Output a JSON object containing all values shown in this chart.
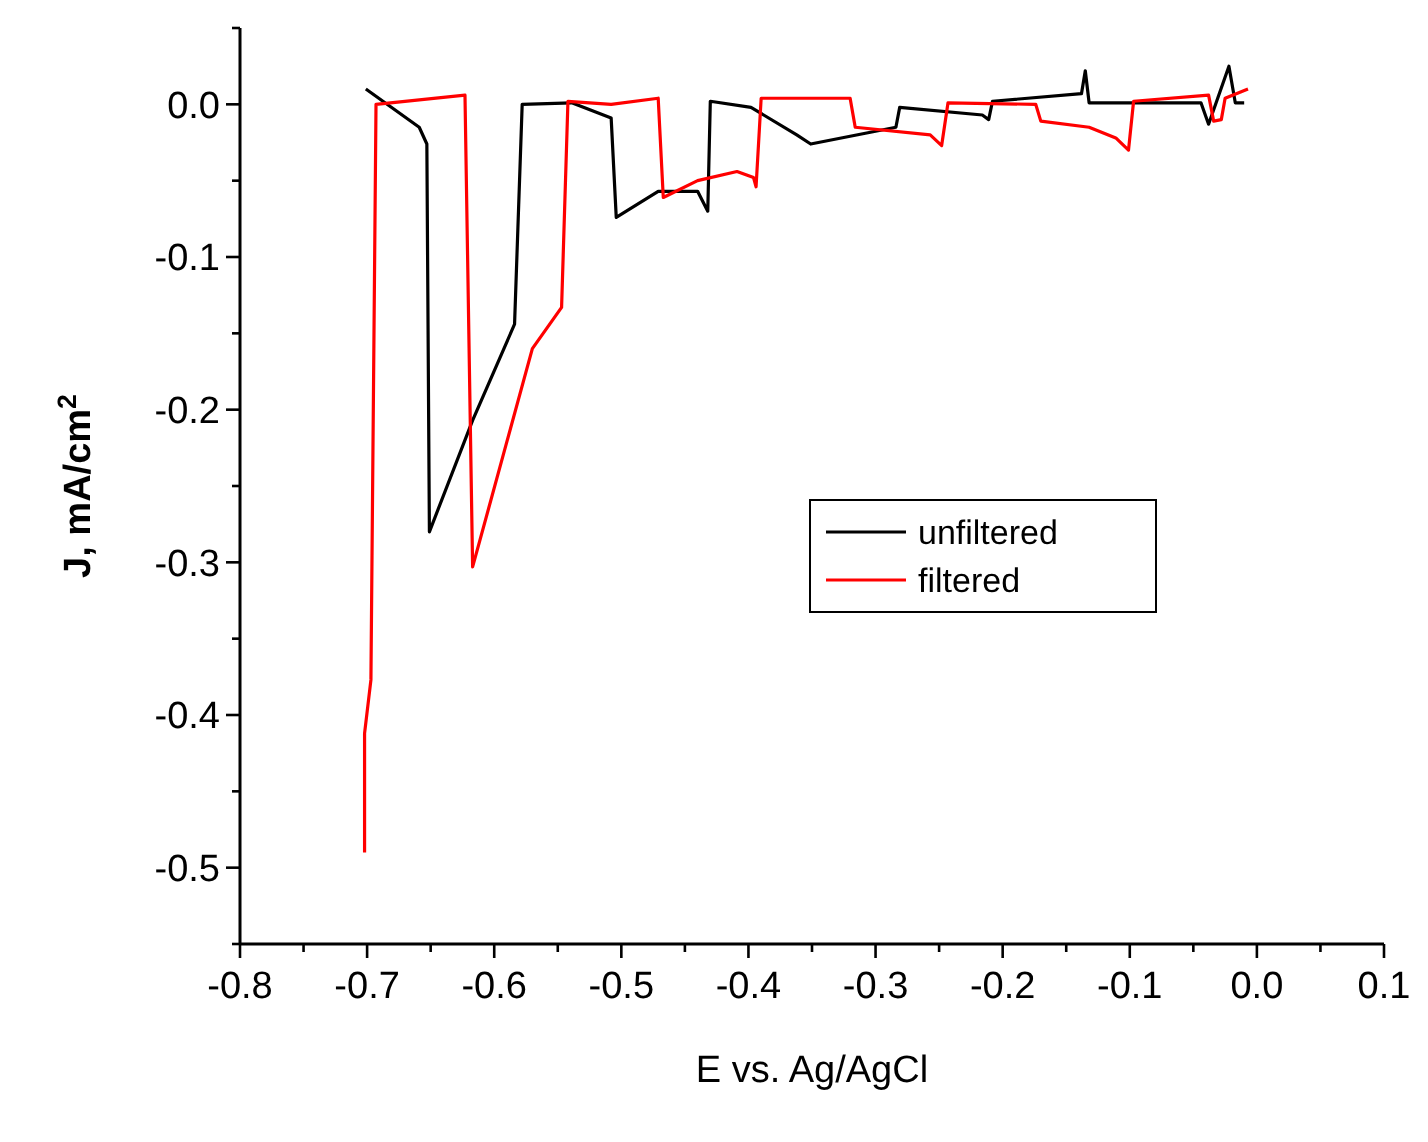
{
  "chart_data": {
    "type": "line",
    "xlabel": "E vs. Ag/AgCl",
    "ylabel": "J, mA/cm$^{2}$",
    "xlim": [
      -0.8,
      0.1
    ],
    "ylim": [
      -0.55,
      0.05
    ],
    "xticks": [
      {
        "value": -0.8,
        "label": "-0.8"
      },
      {
        "value": -0.75,
        "label": null
      },
      {
        "value": -0.7,
        "label": "-0.7"
      },
      {
        "value": -0.65,
        "label": null
      },
      {
        "value": -0.6,
        "label": "-0.6"
      },
      {
        "value": -0.55,
        "label": null
      },
      {
        "value": -0.5,
        "label": "-0.5"
      },
      {
        "value": -0.45,
        "label": null
      },
      {
        "value": -0.4,
        "label": "-0.4"
      },
      {
        "value": -0.35,
        "label": null
      },
      {
        "value": -0.3,
        "label": "-0.3"
      },
      {
        "value": -0.25,
        "label": null
      },
      {
        "value": -0.2,
        "label": "-0.2"
      },
      {
        "value": -0.15,
        "label": null
      },
      {
        "value": -0.1,
        "label": "-0.1"
      },
      {
        "value": -0.05,
        "label": null
      },
      {
        "value": 0,
        "label": "0.0"
      },
      {
        "value": 0.05,
        "label": null
      },
      {
        "value": 0.1,
        "label": "0.1"
      }
    ],
    "yticks": [
      {
        "value": -0.55,
        "label": null
      },
      {
        "value": -0.5,
        "label": "-0.5"
      },
      {
        "value": -0.45,
        "label": null
      },
      {
        "value": -0.4,
        "label": "-0.4"
      },
      {
        "value": -0.35,
        "label": null
      },
      {
        "value": -0.3,
        "label": "-0.3"
      },
      {
        "value": -0.25,
        "label": null
      },
      {
        "value": -0.2,
        "label": "-0.2"
      },
      {
        "value": -0.15,
        "label": null
      },
      {
        "value": -0.1,
        "label": "-0.1"
      },
      {
        "value": -0.05,
        "label": null
      },
      {
        "value": 0,
        "label": "0.0"
      },
      {
        "value": 0.05,
        "label": null
      }
    ],
    "grid": false,
    "legend": "center",
    "line_style": "solid",
    "series": [
      {
        "name": "unfiltered",
        "color": "#000000",
        "x": [
          -0.701,
          -0.659,
          -0.653,
          -0.651,
          -0.617,
          -0.584,
          -0.578,
          -0.539,
          -0.508,
          -0.504,
          -0.471,
          -0.44,
          -0.432,
          -0.43,
          -0.398,
          -0.362,
          -0.351,
          -0.284,
          -0.281,
          -0.216,
          -0.211,
          -0.208,
          -0.138,
          -0.135,
          -0.132,
          -0.044,
          -0.038,
          -0.022,
          -0.017,
          -0.01
        ],
        "values": [
          0.01,
          -0.015,
          -0.026,
          -0.28,
          -0.207,
          -0.144,
          0.0,
          0.001,
          -0.009,
          -0.074,
          -0.057,
          -0.057,
          -0.07,
          0.002,
          -0.002,
          -0.02,
          -0.026,
          -0.015,
          -0.002,
          -0.007,
          -0.01,
          0.002,
          0.007,
          0.022,
          0.001,
          0.001,
          -0.013,
          0.025,
          0.001,
          0.001
        ]
      },
      {
        "name": "filtered",
        "color": "#ff0000",
        "x": [
          -0.702,
          -0.702,
          -0.697,
          -0.693,
          -0.623,
          -0.617,
          -0.57,
          -0.547,
          -0.542,
          -0.508,
          -0.471,
          -0.467,
          -0.44,
          -0.409,
          -0.396,
          -0.394,
          -0.39,
          -0.32,
          -0.316,
          -0.257,
          -0.248,
          -0.243,
          -0.174,
          -0.17,
          -0.132,
          -0.111,
          -0.101,
          -0.097,
          -0.038,
          -0.034,
          -0.028,
          -0.025,
          -0.007
        ],
        "values": [
          -0.49,
          -0.412,
          -0.377,
          0.0,
          0.006,
          -0.303,
          -0.16,
          -0.133,
          0.002,
          0.0,
          0.004,
          -0.061,
          -0.05,
          -0.044,
          -0.048,
          -0.054,
          0.004,
          0.004,
          -0.015,
          -0.02,
          -0.027,
          0.001,
          0.0,
          -0.011,
          -0.015,
          -0.022,
          -0.03,
          0.002,
          0.006,
          -0.011,
          -0.01,
          0.004,
          0.01
        ]
      }
    ]
  }
}
